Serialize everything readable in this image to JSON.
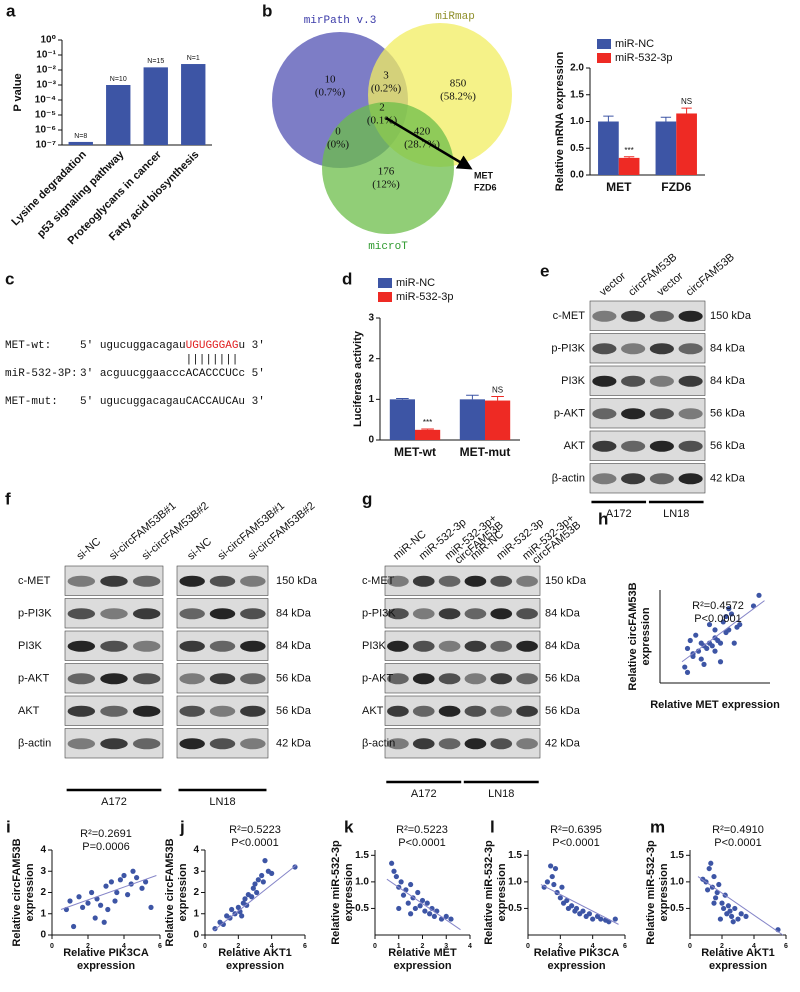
{
  "chart_data": [
    {
      "type": "bar",
      "label": "a",
      "ylabel": [
        "P value"
      ],
      "categories": [
        "Lysine degradation",
        "p53 signaling pathway",
        "Proteoglycans in cancer",
        "Fatty acid biosynthesis"
      ],
      "values": [
        1.6e-07,
        0.001,
        0.015,
        0.025
      ],
      "bar_labels": [
        "N=8",
        "N=10",
        "N=15",
        "N=1"
      ],
      "color": "#3d55a5",
      "log_y": true,
      "ylim": [
        1e-07,
        1
      ],
      "yticks": [
        {
          "value": 1,
          "label": "10⁰"
        },
        {
          "value": 0.1,
          "label": "10⁻¹"
        },
        {
          "value": 0.01,
          "label": "10⁻²"
        },
        {
          "value": 0.001,
          "label": "10⁻³"
        },
        {
          "value": 0.0001,
          "label": "10⁻⁴"
        },
        {
          "value": 1e-05,
          "label": "10⁻⁵"
        },
        {
          "value": 1e-06,
          "label": "10⁻⁶"
        },
        {
          "value": 1e-07,
          "label": "10⁻⁷"
        }
      ]
    },
    {
      "type": "bar",
      "ylabel": [
        "Relative mRNA expression"
      ],
      "categories": [
        "MET",
        "FZD6"
      ],
      "series": [
        {
          "name": "miR-NC",
          "color": "#3d55a5",
          "values": [
            1.0,
            1.0
          ],
          "errors": [
            0.1,
            0.08
          ]
        },
        {
          "name": "miR-532-3p",
          "color": "#ee2a24",
          "values": [
            0.32,
            1.15
          ],
          "errors": [
            0.02,
            0.1
          ],
          "significance": [
            "***",
            "NS"
          ]
        }
      ],
      "ylim": [
        0,
        2
      ],
      "yticks": [
        {
          "value": 0,
          "label": "0.0"
        },
        0.5,
        {
          "value": 1,
          "label": "1.0"
        },
        1.5,
        {
          "value": 2,
          "label": "2.0"
        }
      ],
      "legend": "upper left"
    },
    {
      "type": "bar",
      "label": "d",
      "ylabel": [
        "Luciferase activity"
      ],
      "categories": [
        "MET-wt",
        "MET-mut"
      ],
      "series": [
        {
          "name": "miR-NC",
          "color": "#3d55a5",
          "values": [
            1.0,
            1.0
          ],
          "errors": [
            0.02,
            0.1
          ]
        },
        {
          "name": "miR-532-3p",
          "color": "#ee2a24",
          "values": [
            0.25,
            0.97
          ],
          "errors": [
            0.02,
            0.1
          ],
          "significance": [
            "***",
            "NS"
          ]
        }
      ],
      "ylim": [
        0,
        3
      ],
      "yticks": [
        0,
        1,
        2,
        3
      ],
      "legend": "upper left"
    },
    {
      "type": "scatter",
      "label": "h",
      "ylabel": [
        "Relative circFAM53B",
        "expression"
      ],
      "xlabel": [
        "Relative MET expression"
      ],
      "annotations": [
        "R²=0.4572",
        "P<0.0001"
      ],
      "x": [
        0.9,
        1.0,
        1.1,
        1.2,
        1.3,
        1.4,
        1.5,
        1.5,
        1.6,
        1.7,
        1.8,
        1.8,
        1.9,
        2.0,
        2.0,
        2.1,
        2.2,
        2.2,
        2.3,
        2.4,
        2.4,
        2.5,
        2.5,
        2.6,
        2.7,
        2.8,
        1.2,
        1.6,
        2.0,
        3.4,
        3.6,
        2.9,
        1.0
      ],
      "y": [
        0.6,
        0.4,
        1.6,
        1.0,
        1.8,
        1.2,
        1.5,
        0.9,
        1.4,
        1.3,
        2.2,
        1.5,
        1.4,
        1.2,
        2.0,
        1.6,
        1.5,
        0.8,
        2.3,
        1.9,
        2.5,
        2.0,
        2.8,
        2.6,
        1.5,
        2.1,
        1.1,
        0.7,
        1.7,
        2.9,
        3.3,
        2.2,
        1.3
      ],
      "fit_x": [
        0.8,
        3.8
      ],
      "fit_y": [
        0.8,
        3.1
      ],
      "color": "#3d55a5",
      "line_color": "#8585c8",
      "xlim": [
        0,
        4
      ],
      "ylim": [
        0,
        3.5
      ]
    },
    {
      "type": "scatter",
      "label": "i",
      "ylabel": [
        "Relative circFAM53B",
        "expression"
      ],
      "xlabel": [
        "Relative PIK3CA",
        "expression"
      ],
      "annotations": [
        "R²=0.2691",
        "P=0.0006"
      ],
      "x": [
        0.8,
        1.0,
        1.2,
        1.5,
        1.7,
        2.0,
        2.2,
        2.4,
        2.5,
        2.7,
        3.0,
        3.1,
        3.3,
        3.5,
        3.6,
        3.8,
        4.0,
        4.2,
        4.4,
        4.5,
        4.7,
        5.0,
        5.2,
        5.5,
        2.9
      ],
      "y": [
        1.2,
        1.6,
        0.4,
        1.8,
        1.3,
        1.5,
        2.0,
        0.8,
        1.7,
        1.4,
        2.3,
        1.2,
        2.5,
        1.6,
        2.0,
        2.6,
        2.8,
        1.9,
        2.4,
        3.0,
        2.7,
        2.2,
        2.5,
        1.3,
        0.6
      ],
      "fit_x": [
        0.5,
        5.8
      ],
      "fit_y": [
        1.2,
        2.8
      ],
      "color": "#3d55a5",
      "line_color": "#8585c8",
      "xlim": [
        0,
        6
      ],
      "ylim": [
        0,
        4
      ],
      "xticks": [
        0,
        2,
        4,
        6
      ],
      "yticks": [
        0,
        1,
        2,
        3,
        4
      ]
    },
    {
      "type": "scatter",
      "label": "j",
      "ylabel": [
        "Relative circFAM53B",
        "expression"
      ],
      "xlabel": [
        "Relative AKT1",
        "expression"
      ],
      "annotations": [
        "R²=0.5223",
        "P<0.0001"
      ],
      "x": [
        0.6,
        0.9,
        1.1,
        1.3,
        1.5,
        1.6,
        1.8,
        2.0,
        2.1,
        2.3,
        2.4,
        2.5,
        2.6,
        2.8,
        2.9,
        3.0,
        3.1,
        3.2,
        3.4,
        3.5,
        3.6,
        3.8,
        4.0,
        5.4,
        2.2
      ],
      "y": [
        0.3,
        0.6,
        0.5,
        0.9,
        0.8,
        1.2,
        1.0,
        1.3,
        1.1,
        1.5,
        1.7,
        1.4,
        1.9,
        1.8,
        2.2,
        2.4,
        2.0,
        2.6,
        2.8,
        2.5,
        3.5,
        3.0,
        2.9,
        3.2,
        0.9
      ],
      "fit_x": [
        0.5,
        5.5
      ],
      "fit_y": [
        0.2,
        3.3
      ],
      "color": "#3d55a5",
      "line_color": "#8585c8",
      "xlim": [
        0,
        6
      ],
      "ylim": [
        0,
        4
      ],
      "xticks": [
        0,
        2,
        4,
        6
      ],
      "yticks": [
        0,
        1,
        2,
        3,
        4
      ]
    },
    {
      "type": "scatter",
      "label": "k",
      "ylabel": [
        "Relative miR-532-3p",
        "expression"
      ],
      "xlabel": [
        "Relative MET",
        "expression"
      ],
      "annotations": [
        "R²=0.5223",
        "P<0.0001"
      ],
      "x": [
        0.7,
        0.8,
        0.9,
        1.0,
        1.1,
        1.2,
        1.3,
        1.4,
        1.5,
        1.6,
        1.7,
        1.8,
        1.9,
        2.0,
        2.1,
        2.2,
        2.3,
        2.4,
        2.5,
        2.6,
        2.8,
        3.0,
        3.2,
        1.0,
        1.5
      ],
      "y": [
        1.35,
        1.2,
        1.1,
        0.9,
        1.0,
        0.75,
        0.85,
        0.6,
        0.95,
        0.7,
        0.5,
        0.8,
        0.55,
        0.65,
        0.45,
        0.6,
        0.4,
        0.5,
        0.35,
        0.45,
        0.3,
        0.35,
        0.3,
        0.5,
        0.4
      ],
      "fit_x": [
        0.5,
        3.6
      ],
      "fit_y": [
        1.05,
        0.1
      ],
      "color": "#3d55a5",
      "line_color": "#8585c8",
      "xlim": [
        0,
        4
      ],
      "ylim": [
        0,
        1.6
      ],
      "xticks": [
        0,
        1,
        2,
        3,
        4
      ],
      "yticks": [
        0.5,
        {
          "value": 1,
          "label": "1.0"
        },
        1.5
      ]
    },
    {
      "type": "scatter",
      "label": "l",
      "ylabel": [
        "Relative miR-532-3p",
        "expression"
      ],
      "xlabel": [
        "Relative PIK3CA",
        "expression"
      ],
      "annotations": [
        "R²=0.6395",
        "P<0.0001"
      ],
      "x": [
        1.0,
        1.2,
        1.4,
        1.5,
        1.6,
        1.7,
        1.8,
        2.0,
        2.1,
        2.2,
        2.4,
        2.5,
        2.7,
        2.9,
        3.0,
        3.2,
        3.4,
        3.6,
        3.8,
        4.0,
        4.3,
        4.5,
        4.8,
        5.0,
        5.4
      ],
      "y": [
        0.9,
        1.0,
        1.3,
        1.1,
        0.95,
        1.25,
        0.8,
        0.7,
        0.9,
        0.6,
        0.65,
        0.5,
        0.55,
        0.45,
        0.5,
        0.4,
        0.45,
        0.35,
        0.4,
        0.3,
        0.35,
        0.3,
        0.28,
        0.25,
        0.3
      ],
      "fit_x": [
        0.8,
        5.6
      ],
      "fit_y": [
        0.95,
        0.2
      ],
      "color": "#3d55a5",
      "line_color": "#8585c8",
      "xlim": [
        0,
        6
      ],
      "ylim": [
        0,
        1.6
      ],
      "xticks": [
        0,
        2,
        4,
        6
      ],
      "yticks": [
        0.5,
        {
          "value": 1,
          "label": "1.0"
        },
        1.5
      ]
    },
    {
      "type": "scatter",
      "label": "m",
      "ylabel": [
        "Relative miR-532-3p",
        "expression"
      ],
      "xlabel": [
        "Relative AKT1",
        "expression"
      ],
      "annotations": [
        "R²=0.4910",
        "P<0.0001"
      ],
      "x": [
        0.8,
        1.0,
        1.2,
        1.3,
        1.4,
        1.5,
        1.6,
        1.7,
        1.8,
        2.0,
        2.1,
        2.2,
        2.3,
        2.4,
        2.5,
        2.6,
        2.8,
        3.0,
        3.2,
        1.5,
        1.9,
        2.7,
        3.5,
        5.5,
        1.1
      ],
      "y": [
        1.05,
        1.0,
        1.25,
        1.35,
        0.9,
        1.1,
        0.7,
        0.8,
        0.95,
        0.6,
        0.5,
        0.75,
        0.4,
        0.55,
        0.45,
        0.35,
        0.5,
        0.3,
        0.4,
        0.6,
        0.3,
        0.25,
        0.35,
        0.1,
        0.85
      ],
      "fit_x": [
        0.5,
        5.8
      ],
      "fit_y": [
        1.1,
        0.0
      ],
      "color": "#3d55a5",
      "line_color": "#8585c8",
      "xlim": [
        0,
        6
      ],
      "ylim": [
        0,
        1.6
      ],
      "xticks": [
        0,
        2,
        4,
        6
      ],
      "yticks": [
        0.5,
        {
          "value": 1,
          "label": "1.0"
        },
        1.5
      ]
    }
  ],
  "venn": {
    "label": "b",
    "sets": [
      "mirPath v.3",
      "miRmap",
      "microT"
    ],
    "regions": [
      {
        "count": 10,
        "percent": "(0.7%)"
      },
      {
        "count": 3,
        "percent": "(0.2%)"
      },
      {
        "count": 850,
        "percent": "(58.2%)"
      },
      {
        "count": 2,
        "percent": "(0.1%)"
      },
      {
        "count": 0,
        "percent": "(0%)"
      },
      {
        "count": 420,
        "percent": "(28.7%)"
      },
      {
        "count": 176,
        "percent": "(12%)"
      }
    ],
    "targets": [
      "MET",
      "FZD6"
    ]
  },
  "sequences": {
    "label": "c",
    "rows": [
      {
        "name": "MET-wt:",
        "parts": [
          "5'",
          "ugucuggacagau",
          "UGUGGGAG",
          "u 3'"
        ]
      },
      {
        "name": "miR-532-3P:",
        "parts": [
          "3'",
          "acguucggaaccc",
          "ACACCCUC",
          "c 5'"
        ]
      },
      {
        "name": "MET-mut:",
        "parts": [
          "5'",
          "ugucuggacagauCACCAUCAu",
          "3'"
        ]
      }
    ],
    "pairing": "||||||||"
  },
  "blots": [
    {
      "label": "e",
      "lanes": [
        [
          "vector"
        ],
        [
          "circFAM53B"
        ],
        [
          "vector"
        ],
        [
          "circFAM53B"
        ]
      ],
      "rows": [
        "c-MET",
        "p-PI3K",
        "PI3K",
        "p-AKT",
        "AKT",
        "β-actin"
      ],
      "sizes": [
        "150 kDa",
        "84 kDa",
        "84 kDa",
        "56 kDa",
        "56 kDa",
        "42 kDa"
      ],
      "groups": [
        "A172",
        "LN18"
      ]
    },
    {
      "label": "f",
      "lanes": [
        [
          "si-NC"
        ],
        [
          "si-circFAM53B#1"
        ],
        [
          "si-circFAM53B#2"
        ],
        [
          "si-NC"
        ],
        [
          "si-circFAM53B#1"
        ],
        [
          "si-circFAM53B#2"
        ]
      ],
      "rows": [
        "c-MET",
        "p-PI3K",
        "PI3K",
        "p-AKT",
        "AKT",
        "β-actin"
      ],
      "sizes": [
        "150 kDa",
        "84 kDa",
        "84 kDa",
        "56 kDa",
        "56 kDa",
        "42 kDa"
      ],
      "groups": [
        "A172",
        "LN18"
      ]
    },
    {
      "label": "g",
      "lanes": [
        [
          "miR-NC"
        ],
        [
          "miR-532-3p"
        ],
        [
          "miR-532-3p+",
          "circFAM53B"
        ],
        [
          "miR-NC"
        ],
        [
          "miR-532-3p"
        ],
        [
          "miR-532-3p+",
          "circFAM53B"
        ]
      ],
      "rows": [
        "c-MET",
        "p-PI3K",
        "PI3K",
        "p-AKT",
        "AKT",
        "β-actin"
      ],
      "sizes": [
        "150 kDa",
        "84 kDa",
        "84 kDa",
        "56 kDa",
        "56 kDa",
        "42 kDa"
      ],
      "groups": [
        "A172",
        "LN18"
      ]
    }
  ]
}
